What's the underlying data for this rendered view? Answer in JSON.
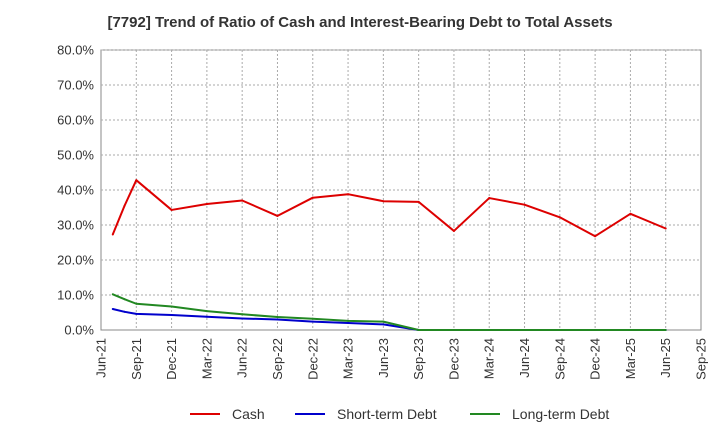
{
  "chart_data": {
    "type": "line",
    "title": "[7792]  Trend of Ratio of Cash and Interest-Bearing Debt to Total Assets",
    "x_ticks": [
      "Jun-21",
      "Sep-21",
      "Dec-21",
      "Mar-22",
      "Jun-22",
      "Sep-22",
      "Dec-22",
      "Mar-23",
      "Jun-23",
      "Sep-23",
      "Dec-23",
      "Mar-24",
      "Jun-24",
      "Sep-24",
      "Dec-24",
      "Mar-25",
      "Jun-25",
      "Sep-25"
    ],
    "y_ticks": [
      "0.0%",
      "10.0%",
      "20.0%",
      "30.0%",
      "40.0%",
      "50.0%",
      "60.0%",
      "70.0%",
      "80.0%"
    ],
    "ylim": [
      0,
      80
    ],
    "y_unit": "%",
    "grid": true,
    "legend_position": "bottom",
    "x": [
      "Jul-21",
      "Aug-21",
      "Sep-21",
      "Dec-21",
      "Mar-22",
      "Jun-22",
      "Sep-22",
      "Dec-22",
      "Mar-23",
      "Jun-23",
      "Sep-23",
      "Dec-23",
      "Mar-24",
      "Jun-24",
      "Sep-24",
      "Dec-24",
      "Mar-25",
      "Jun-25"
    ],
    "series": [
      {
        "name": "Cash",
        "color": "#dd0000",
        "values": [
          27.3,
          35.5,
          42.8,
          34.3,
          36.0,
          37.0,
          32.6,
          37.8,
          38.8,
          36.8,
          36.6,
          28.3,
          37.7,
          35.8,
          32.2,
          26.8,
          33.2,
          29.0
        ]
      },
      {
        "name": "Short-term Debt",
        "color": "#0000cc",
        "values": [
          6.0,
          5.2,
          4.6,
          4.3,
          3.8,
          3.3,
          3.0,
          2.4,
          2.0,
          1.6,
          0.0,
          0.0,
          0.0,
          0.0,
          0.0,
          0.0,
          0.0,
          0.0
        ]
      },
      {
        "name": "Long-term Debt",
        "color": "#228822",
        "values": [
          10.2,
          8.8,
          7.5,
          6.7,
          5.4,
          4.5,
          3.7,
          3.2,
          2.6,
          2.4,
          0.0,
          0.0,
          0.0,
          0.0,
          0.0,
          0.0,
          0.0,
          0.0
        ]
      }
    ]
  }
}
